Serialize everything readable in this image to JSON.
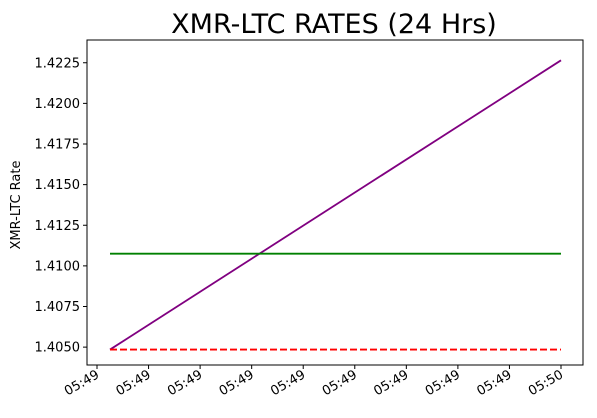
{
  "chart_data": {
    "type": "line",
    "title": "XMR-LTC RATES (24 Hrs)",
    "xlabel": "",
    "ylabel": "XMR-LTC Rate",
    "x_ticks": [
      "05:49",
      "05:49",
      "05:49",
      "05:49",
      "05:49",
      "05:49",
      "05:49",
      "05:49",
      "05:49",
      "05:50"
    ],
    "y_ticks": [
      "1.4050",
      "1.4075",
      "1.4100",
      "1.4125",
      "1.4150",
      "1.4175",
      "1.4200",
      "1.4225"
    ],
    "ylim": [
      1.4039,
      1.4239
    ],
    "grid": false,
    "series": [
      {
        "color": "#800080",
        "style": "solid",
        "x_frac": [
          0,
          1
        ],
        "y": [
          1.40485,
          1.42265
        ]
      },
      {
        "color": "#008000",
        "style": "solid",
        "x_frac": [
          0,
          1
        ],
        "y": [
          1.41075,
          1.41075
        ]
      },
      {
        "color": "#ff0000",
        "style": "dashed",
        "x_frac": [
          0,
          1
        ],
        "y": [
          1.40485,
          1.40485
        ]
      }
    ]
  }
}
